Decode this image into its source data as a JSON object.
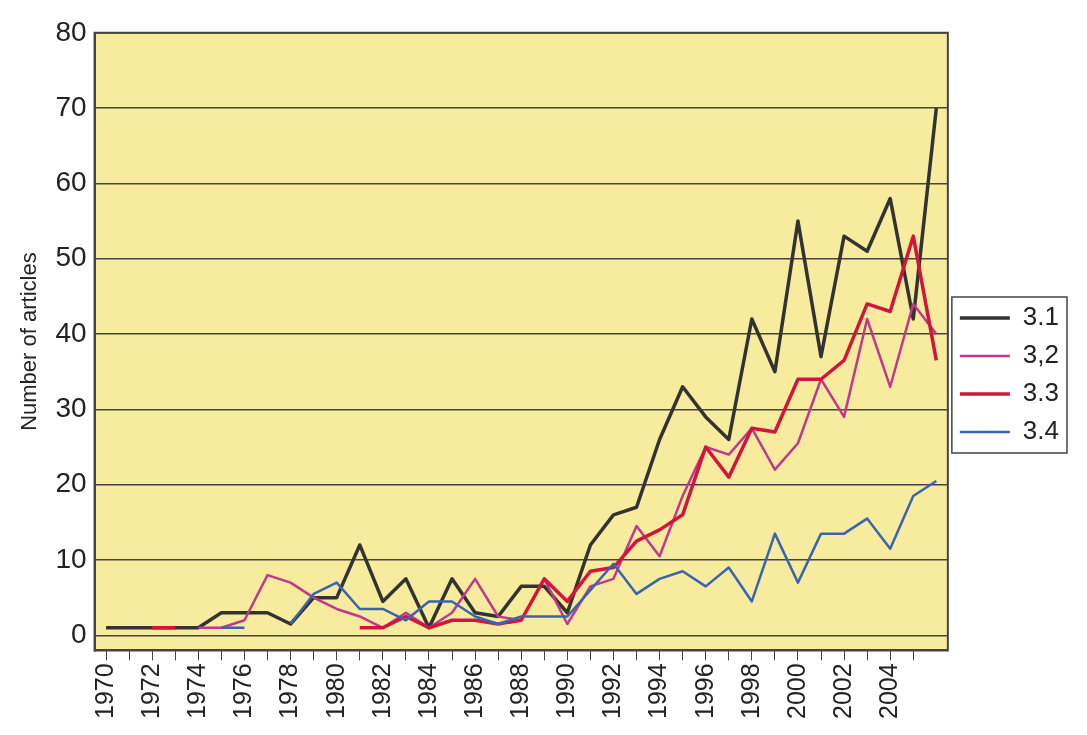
{
  "chart_data": {
    "type": "line",
    "ylabel": "Number of articles",
    "x": [
      1970,
      1971,
      1972,
      1973,
      1974,
      1975,
      1976,
      1977,
      1978,
      1979,
      1980,
      1981,
      1982,
      1983,
      1984,
      1985,
      1986,
      1987,
      1988,
      1989,
      1990,
      1991,
      1992,
      1993,
      1994,
      1995,
      1996,
      1997,
      1998,
      1999,
      2000,
      2001,
      2002,
      2003,
      2004,
      2005,
      2006
    ],
    "series": [
      {
        "name": "3.1",
        "color": "#333333",
        "values": [
          1,
          1,
          1,
          1,
          1,
          3,
          3,
          3,
          1.5,
          5,
          5,
          12,
          4.5,
          7.5,
          1,
          7.5,
          3,
          2.5,
          6.5,
          6.5,
          3,
          12,
          16,
          17,
          26,
          33,
          29,
          26,
          42,
          35,
          55,
          37,
          53,
          51,
          58,
          42,
          70
        ]
      },
      {
        "name": "3,2",
        "color": "#c0388f",
        "values": [
          null,
          null,
          null,
          null,
          1,
          1,
          2,
          8,
          7,
          5,
          3.5,
          2.5,
          1,
          3,
          1,
          3,
          7.5,
          2.5,
          2,
          7.5,
          1.5,
          6.5,
          7.5,
          14.5,
          10.5,
          18.5,
          25,
          24,
          27.5,
          22,
          25.5,
          34,
          29,
          42,
          33,
          44,
          40
        ]
      },
      {
        "name": "3.3",
        "color": "#d0163c",
        "values": [
          null,
          null,
          1,
          1,
          null,
          null,
          null,
          null,
          null,
          null,
          null,
          1,
          1,
          2.5,
          1,
          2,
          2,
          1.5,
          2,
          7.5,
          4.5,
          8.5,
          9,
          12.5,
          14,
          16,
          25,
          21,
          27.5,
          27,
          34,
          34,
          36.5,
          44,
          43,
          53,
          36.5
        ]
      },
      {
        "name": "3.4",
        "color": "#3a64b0",
        "values": [
          null,
          null,
          null,
          null,
          null,
          1,
          1,
          null,
          1.5,
          5.5,
          7,
          3.5,
          3.5,
          2,
          4.5,
          4.5,
          2.5,
          1.5,
          2.5,
          2.5,
          2.5,
          6,
          9.5,
          5.5,
          7.5,
          8.5,
          6.5,
          9,
          4.5,
          13.5,
          7,
          13.5,
          13.5,
          15.5,
          11.5,
          18.5,
          20.5
        ]
      }
    ],
    "xlim": [
      1969.5,
      2006.5
    ],
    "xticks": [
      1970,
      {
        "value": 1971,
        "label": null
      },
      1972,
      {
        "value": 1973,
        "label": null
      },
      1974,
      {
        "value": 1975,
        "label": null
      },
      1976,
      {
        "value": 1977,
        "label": null
      },
      1978,
      {
        "value": 1979,
        "label": null
      },
      1980,
      {
        "value": 1981,
        "label": null
      },
      1982,
      {
        "value": 1983,
        "label": null
      },
      1984,
      {
        "value": 1985,
        "label": null
      },
      1986,
      {
        "value": 1987,
        "label": null
      },
      1988,
      {
        "value": 1989,
        "label": null
      },
      1990,
      {
        "value": 1991,
        "label": null
      },
      1992,
      {
        "value": 1993,
        "label": null
      },
      1994,
      {
        "value": 1995,
        "label": null
      },
      1996,
      {
        "value": 1997,
        "label": null
      },
      1998,
      {
        "value": 1999,
        "label": null
      },
      2000,
      {
        "value": 2001,
        "label": null
      },
      2002,
      {
        "value": 2003,
        "label": null
      },
      2004,
      {
        "value": 2005,
        "label": null
      }
    ],
    "ylim": [
      -2,
      80
    ],
    "yticks": [
      0,
      10,
      20,
      30,
      40,
      50,
      60,
      70,
      80
    ],
    "grid": "y",
    "legend": "right",
    "marker": "none",
    "line_style": "solid"
  }
}
